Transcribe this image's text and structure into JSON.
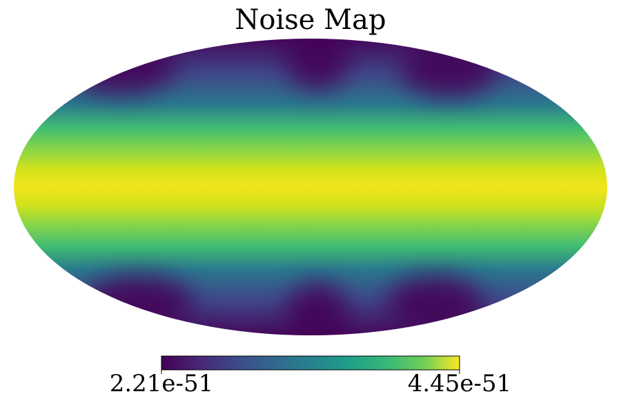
{
  "chart_data": {
    "type": "mollweide",
    "title": "Noise Map",
    "colormap": "viridis",
    "colorbar": {
      "lim": [
        2.21e-51,
        4.45e-51
      ],
      "ticks": [
        2.21e-51,
        4.45e-51
      ]
    }
  }
}
